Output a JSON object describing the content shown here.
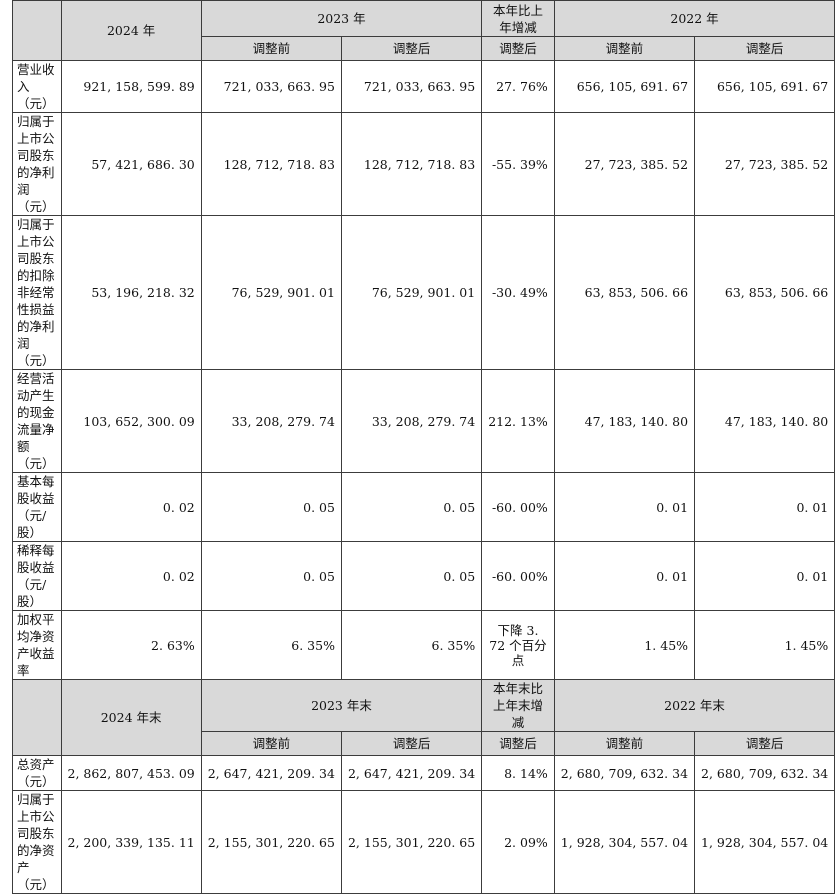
{
  "header1": {
    "col_2024": "2024 年",
    "col_2023": "2023 年",
    "col_change": "本年比上年增减",
    "col_2022": "2022 年"
  },
  "subheader1": {
    "before": "调整前",
    "after": "调整后",
    "change_after": "调整后"
  },
  "rows1": [
    {
      "label": "营业收入（元）",
      "v2024": "921, 158, 599. 89",
      "v2023_before": "721, 033, 663. 95",
      "v2023_after": "721, 033, 663. 95",
      "change": "27. 76%",
      "v2022_before": "656, 105, 691. 67",
      "v2022_after": "656, 105, 691. 67"
    },
    {
      "label": "归属于上市公司股东的净利润（元）",
      "v2024": "57, 421, 686. 30",
      "v2023_before": "128, 712, 718. 83",
      "v2023_after": "128, 712, 718. 83",
      "change": "-55. 39%",
      "v2022_before": "27, 723, 385. 52",
      "v2022_after": "27, 723, 385. 52"
    },
    {
      "label": "归属于上市公司股东的扣除非经常性损益的净利润（元）",
      "v2024": "53, 196, 218. 32",
      "v2023_before": "76, 529, 901. 01",
      "v2023_after": "76, 529, 901. 01",
      "change": "-30. 49%",
      "v2022_before": "63, 853, 506. 66",
      "v2022_after": "63, 853, 506. 66"
    },
    {
      "label": "经营活动产生的现金流量净额（元）",
      "v2024": "103, 652, 300. 09",
      "v2023_before": "33, 208, 279. 74",
      "v2023_after": "33, 208, 279. 74",
      "change": "212. 13%",
      "v2022_before": "47, 183, 140. 80",
      "v2022_after": "47, 183, 140. 80"
    },
    {
      "label": "基本每股收益（元/股）",
      "v2024": "0. 02",
      "v2023_before": "0. 05",
      "v2023_after": "0. 05",
      "change": "-60. 00%",
      "v2022_before": "0. 01",
      "v2022_after": "0. 01"
    },
    {
      "label": "稀释每股收益（元/股）",
      "v2024": "0. 02",
      "v2023_before": "0. 05",
      "v2023_after": "0. 05",
      "change": "-60. 00%",
      "v2022_before": "0. 01",
      "v2022_after": "0. 01"
    },
    {
      "label": "加权平均净资产收益率",
      "v2024": "2. 63%",
      "v2023_before": "6. 35%",
      "v2023_after": "6. 35%",
      "change": "下降 3. 72 个百分点",
      "v2022_before": "1. 45%",
      "v2022_after": "1. 45%"
    }
  ],
  "header2": {
    "col_2024": "2024 年末",
    "col_2023": "2023 年末",
    "col_change": "本年末比上年末增减",
    "col_2022": "2022 年末"
  },
  "subheader2": {
    "before": "调整前",
    "after": "调整后",
    "change_after": "调整后"
  },
  "rows2": [
    {
      "label": "总资产（元）",
      "v2024": "2, 862, 807, 453. 09",
      "v2023_before": "2, 647, 421, 209. 34",
      "v2023_after": "2, 647, 421, 209. 34",
      "change": "8. 14%",
      "v2022_before": "2, 680, 709, 632. 34",
      "v2022_after": "2, 680, 709, 632. 34"
    },
    {
      "label": "归属于上市公司股东的净资产（元）",
      "v2024": "2, 200, 339, 135. 11",
      "v2023_before": "2, 155, 301, 220. 65",
      "v2023_after": "2, 155, 301, 220. 65",
      "change": "2. 09%",
      "v2022_before": "1, 928, 304, 557. 04",
      "v2022_after": "1, 928, 304, 557. 04"
    }
  ]
}
